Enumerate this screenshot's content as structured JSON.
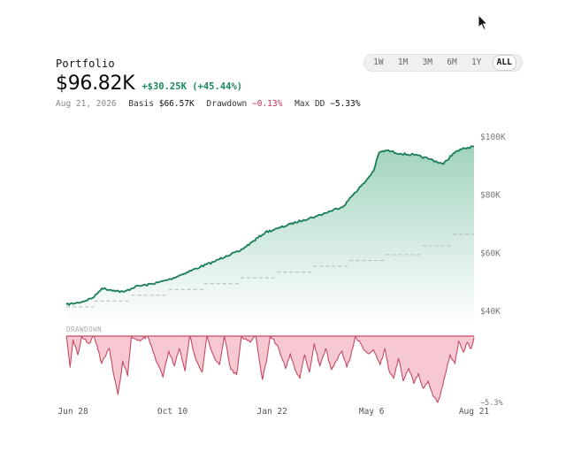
{
  "header": {
    "title": "Portfolio",
    "value": "$96.82K",
    "change": "+$30.25K (+45.44%)",
    "date": "Aug 21, 2026",
    "basis_label": "Basis",
    "basis_value": "$66.57K",
    "drawdown_label": "Drawdown",
    "drawdown_value": "−0.13%",
    "maxdd_label": "Max DD",
    "maxdd_value": "−5.33%"
  },
  "ranges": {
    "items": [
      "1W",
      "1M",
      "3M",
      "6M",
      "1Y",
      "ALL"
    ],
    "selected": "ALL"
  },
  "colors": {
    "value_line": "#1a7f55",
    "value_fill": "#2e9e6e",
    "basis_line": "#b8b8b8",
    "drawdown": "#c44a63",
    "drawdown_fill": "#f2b6c3",
    "positive": "#1f8a5b",
    "negative": "#c0304d"
  },
  "chart_data": {
    "type": "area",
    "title": "",
    "x_tick_labels": [
      "Jun 28",
      "Oct 10",
      "Jan 22",
      "May 6",
      "Aug 21"
    ],
    "x_tick_dates": [
      "2025-06-28",
      "2025-10-10",
      "2026-01-22",
      "2026-05-06",
      "2026-08-21"
    ],
    "y_tick_labels": [
      "$100K",
      "$80K",
      "$60K",
      "$40K"
    ],
    "ylim": [
      36000,
      100000
    ],
    "drawdown_label": "DRAWDOWN",
    "drawdown_min_label": "−5.3%",
    "drawdown_ylim": [
      -5.33,
      0
    ],
    "series": [
      {
        "name": "Value",
        "kind": "value",
        "points": [
          {
            "x": "2025-06-21",
            "y": 42300
          },
          {
            "x": "2025-07-01",
            "y": 42800
          },
          {
            "x": "2025-07-10",
            "y": 43500
          },
          {
            "x": "2025-07-20",
            "y": 44900
          },
          {
            "x": "2025-07-28",
            "y": 47900
          },
          {
            "x": "2025-08-10",
            "y": 47200
          },
          {
            "x": "2025-08-20",
            "y": 46600
          },
          {
            "x": "2025-09-01",
            "y": 48500
          },
          {
            "x": "2025-09-12",
            "y": 49000
          },
          {
            "x": "2025-09-25",
            "y": 49900
          },
          {
            "x": "2025-10-08",
            "y": 51100
          },
          {
            "x": "2025-10-22",
            "y": 53000
          },
          {
            "x": "2025-11-08",
            "y": 55300
          },
          {
            "x": "2025-11-22",
            "y": 57000
          },
          {
            "x": "2025-12-05",
            "y": 59100
          },
          {
            "x": "2025-12-18",
            "y": 60500
          },
          {
            "x": "2026-01-01",
            "y": 63800
          },
          {
            "x": "2026-01-15",
            "y": 67200
          },
          {
            "x": "2026-01-28",
            "y": 68500
          },
          {
            "x": "2026-02-10",
            "y": 70000
          },
          {
            "x": "2026-02-24",
            "y": 71500
          },
          {
            "x": "2026-03-10",
            "y": 72800
          },
          {
            "x": "2026-03-24",
            "y": 74500
          },
          {
            "x": "2026-04-07",
            "y": 76300
          },
          {
            "x": "2026-04-18",
            "y": 80700
          },
          {
            "x": "2026-04-28",
            "y": 84100
          },
          {
            "x": "2026-05-08",
            "y": 88300
          },
          {
            "x": "2026-05-14",
            "y": 94800
          },
          {
            "x": "2026-05-22",
            "y": 95400
          },
          {
            "x": "2026-06-05",
            "y": 94300
          },
          {
            "x": "2026-06-20",
            "y": 93800
          },
          {
            "x": "2026-07-06",
            "y": 92400
          },
          {
            "x": "2026-07-20",
            "y": 90700
          },
          {
            "x": "2026-07-30",
            "y": 94300
          },
          {
            "x": "2026-08-08",
            "y": 95800
          },
          {
            "x": "2026-08-21",
            "y": 96820
          }
        ]
      },
      {
        "name": "Basis",
        "kind": "basis",
        "step": true,
        "points": [
          {
            "x": "2025-06-21",
            "y": 41500
          },
          {
            "x": "2025-07-20",
            "y": 43500
          },
          {
            "x": "2025-08-28",
            "y": 45500
          },
          {
            "x": "2025-10-06",
            "y": 47500
          },
          {
            "x": "2025-11-12",
            "y": 49500
          },
          {
            "x": "2025-12-20",
            "y": 51500
          },
          {
            "x": "2026-01-27",
            "y": 53500
          },
          {
            "x": "2026-03-06",
            "y": 55500
          },
          {
            "x": "2026-04-13",
            "y": 57500
          },
          {
            "x": "2026-05-21",
            "y": 59500
          },
          {
            "x": "2026-06-28",
            "y": 62500
          },
          {
            "x": "2026-07-30",
            "y": 66570
          },
          {
            "x": "2026-08-21",
            "y": 66570
          }
        ]
      },
      {
        "name": "Drawdown",
        "kind": "drawdown",
        "unit": "%",
        "points": [
          {
            "x": "2025-06-21",
            "y": 0
          },
          {
            "x": "2025-06-25",
            "y": -2.5
          },
          {
            "x": "2025-06-28",
            "y": -0.3
          },
          {
            "x": "2025-07-03",
            "y": -1.5
          },
          {
            "x": "2025-07-07",
            "y": 0
          },
          {
            "x": "2025-07-15",
            "y": -0.6
          },
          {
            "x": "2025-07-20",
            "y": 0
          },
          {
            "x": "2025-07-28",
            "y": -2.2
          },
          {
            "x": "2025-08-05",
            "y": -1.0
          },
          {
            "x": "2025-08-10",
            "y": -3.3
          },
          {
            "x": "2025-08-14",
            "y": -4.7
          },
          {
            "x": "2025-08-19",
            "y": -2.0
          },
          {
            "x": "2025-08-24",
            "y": -3.2
          },
          {
            "x": "2025-08-28",
            "y": 0
          },
          {
            "x": "2025-09-06",
            "y": -0.4
          },
          {
            "x": "2025-09-14",
            "y": 0
          },
          {
            "x": "2025-09-22",
            "y": -1.8
          },
          {
            "x": "2025-09-30",
            "y": -3.3
          },
          {
            "x": "2025-10-06",
            "y": -1.2
          },
          {
            "x": "2025-10-12",
            "y": -2.4
          },
          {
            "x": "2025-10-17",
            "y": -1.0
          },
          {
            "x": "2025-10-23",
            "y": -2.8
          },
          {
            "x": "2025-10-28",
            "y": 0
          },
          {
            "x": "2025-11-04",
            "y": -2.0
          },
          {
            "x": "2025-11-10",
            "y": -2.9
          },
          {
            "x": "2025-11-15",
            "y": 0
          },
          {
            "x": "2025-11-22",
            "y": -1.6
          },
          {
            "x": "2025-11-28",
            "y": -2.3
          },
          {
            "x": "2025-12-03",
            "y": 0
          },
          {
            "x": "2025-12-10",
            "y": -2.7
          },
          {
            "x": "2025-12-16",
            "y": -3.1
          },
          {
            "x": "2025-12-21",
            "y": 0
          },
          {
            "x": "2025-12-30",
            "y": -0.5
          },
          {
            "x": "2026-01-05",
            "y": 0
          },
          {
            "x": "2026-01-12",
            "y": -3.5
          },
          {
            "x": "2026-01-16",
            "y": -2.1
          },
          {
            "x": "2026-01-20",
            "y": 0
          },
          {
            "x": "2026-01-28",
            "y": -0.8
          },
          {
            "x": "2026-02-05",
            "y": -2.6
          },
          {
            "x": "2026-02-10",
            "y": -1.4
          },
          {
            "x": "2026-02-15",
            "y": -2.7
          },
          {
            "x": "2026-02-20",
            "y": -3.4
          },
          {
            "x": "2026-02-25",
            "y": -1.5
          },
          {
            "x": "2026-03-02",
            "y": -2.9
          },
          {
            "x": "2026-03-07",
            "y": -0.6
          },
          {
            "x": "2026-03-13",
            "y": -2.4
          },
          {
            "x": "2026-03-19",
            "y": -1.0
          },
          {
            "x": "2026-03-25",
            "y": -2.7
          },
          {
            "x": "2026-03-30",
            "y": -2.0
          },
          {
            "x": "2026-04-05",
            "y": -1.2
          },
          {
            "x": "2026-04-10",
            "y": -2.5
          },
          {
            "x": "2026-04-14",
            "y": -1.7
          },
          {
            "x": "2026-04-19",
            "y": 0
          },
          {
            "x": "2026-04-26",
            "y": -0.8
          },
          {
            "x": "2026-05-02",
            "y": -1.4
          },
          {
            "x": "2026-05-08",
            "y": -1.1
          },
          {
            "x": "2026-05-15",
            "y": -2.3
          },
          {
            "x": "2026-05-20",
            "y": -1.0
          },
          {
            "x": "2026-05-24",
            "y": -2.7
          },
          {
            "x": "2026-05-29",
            "y": -3.4
          },
          {
            "x": "2026-06-03",
            "y": -1.8
          },
          {
            "x": "2026-06-08",
            "y": -3.6
          },
          {
            "x": "2026-06-14",
            "y": -2.6
          },
          {
            "x": "2026-06-19",
            "y": -3.8
          },
          {
            "x": "2026-06-24",
            "y": -3.0
          },
          {
            "x": "2026-06-29",
            "y": -4.2
          },
          {
            "x": "2026-07-04",
            "y": -3.6
          },
          {
            "x": "2026-07-09",
            "y": -4.8
          },
          {
            "x": "2026-07-14",
            "y": -5.33
          },
          {
            "x": "2026-07-18",
            "y": -4.3
          },
          {
            "x": "2026-07-22",
            "y": -3.1
          },
          {
            "x": "2026-07-27",
            "y": -1.5
          },
          {
            "x": "2026-08-01",
            "y": -2.2
          },
          {
            "x": "2026-08-05",
            "y": -0.4
          },
          {
            "x": "2026-08-10",
            "y": -1.3
          },
          {
            "x": "2026-08-14",
            "y": -0.5
          },
          {
            "x": "2026-08-18",
            "y": -1.0
          },
          {
            "x": "2026-08-21",
            "y": -0.13
          }
        ]
      }
    ]
  }
}
